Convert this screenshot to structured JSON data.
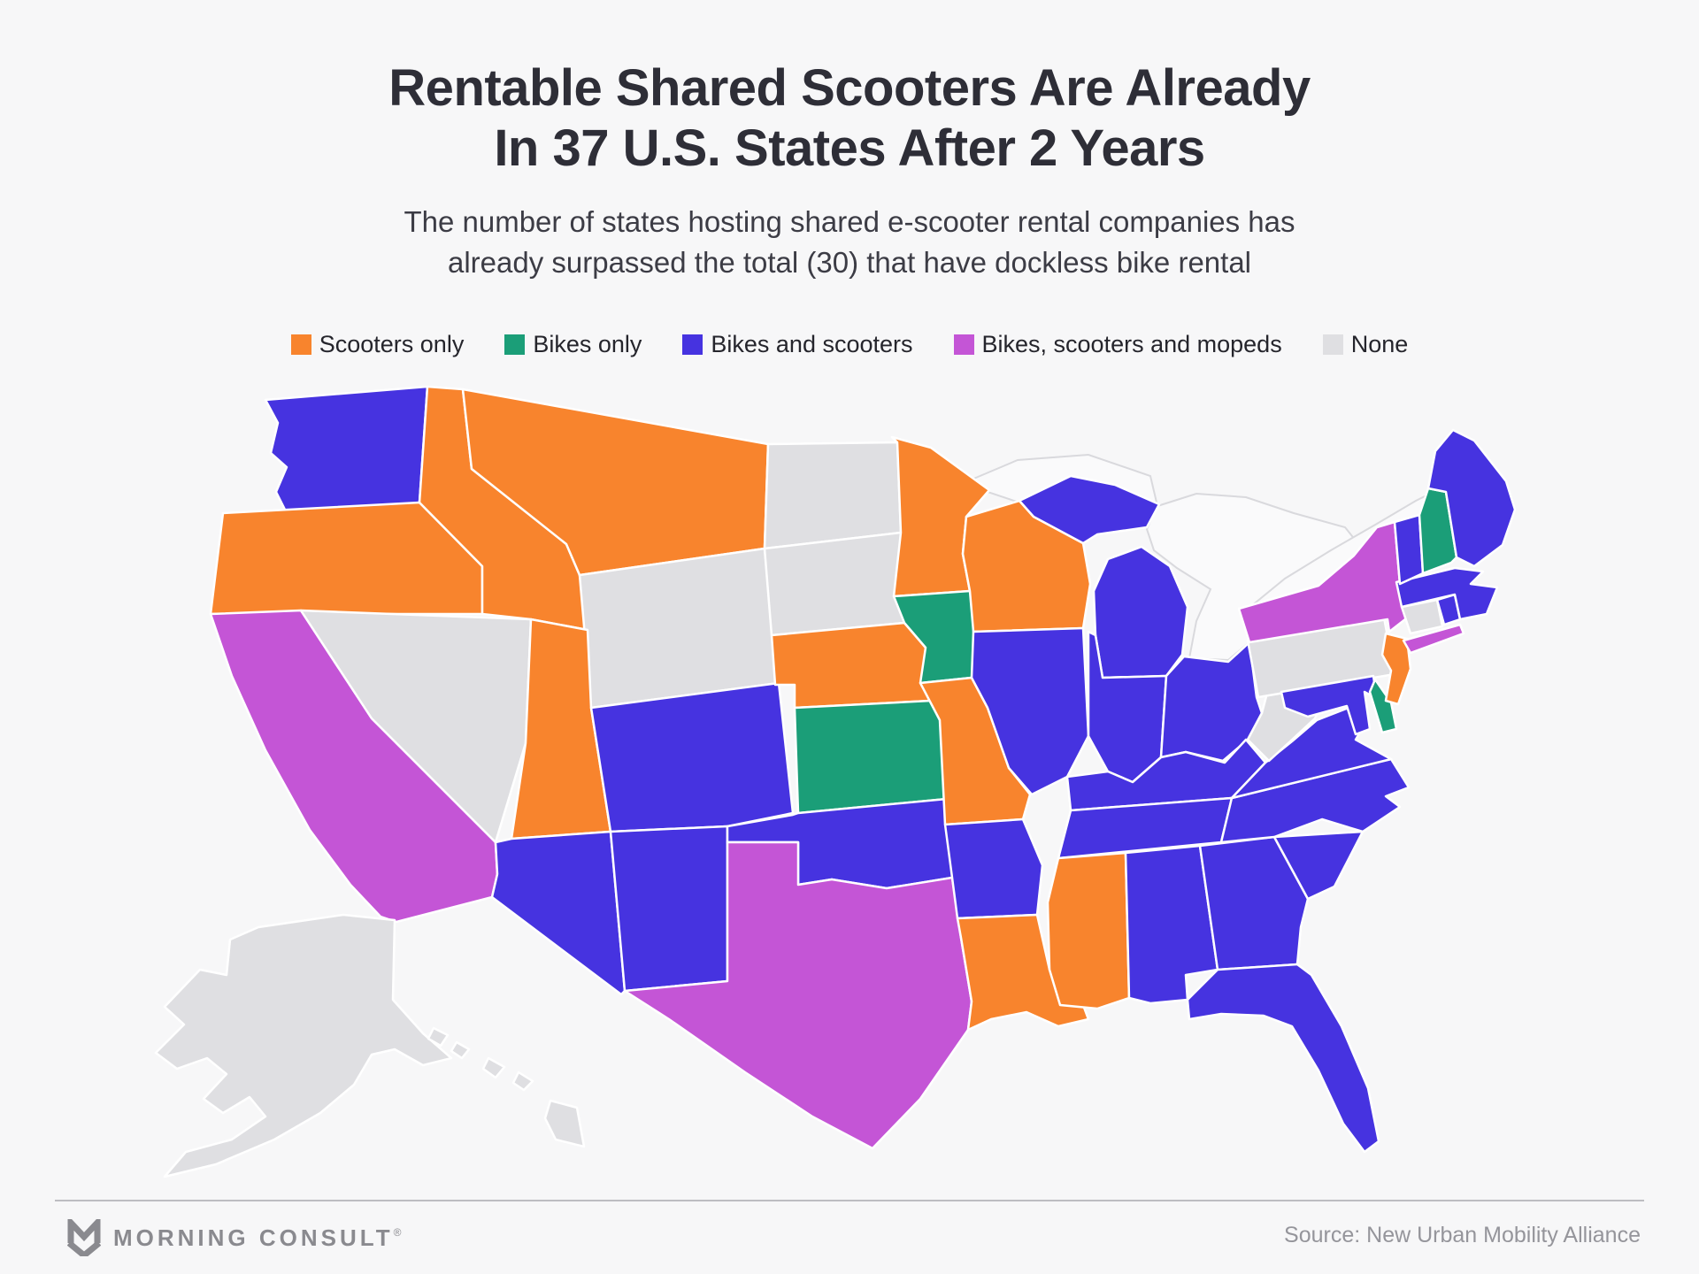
{
  "title": {
    "line1": "Rentable Shared Scooters Are Already",
    "line2": "In 37 U.S. States After 2 Years"
  },
  "subtitle": {
    "line1": "The number of states hosting shared e-scooter rental companies has",
    "line2": "already surpassed the total (30) that have dockless bike rental"
  },
  "legend": [
    {
      "id": "scooters_only",
      "label": "Scooters only"
    },
    {
      "id": "bikes_only",
      "label": "Bikes only"
    },
    {
      "id": "bikes_scooters",
      "label": "Bikes and scooters"
    },
    {
      "id": "bikes_scooters_mopeds",
      "label": "Bikes, scooters and mopeds"
    },
    {
      "id": "none",
      "label": "None"
    }
  ],
  "colors": {
    "scooters_only": "#F8842D",
    "bikes_only": "#1B9E78",
    "bikes_scooters": "#4633E0",
    "bikes_scooters_mopeds": "#C455D6",
    "none": "#DFDFE2",
    "background": "#F7F7F8",
    "state_border": "#FFFFFF"
  },
  "footer": {
    "brand": "MORNING CONSULT",
    "trademark": "®",
    "source": "Source: New Urban Mobility Alliance"
  },
  "chart_data": {
    "type": "choropleth",
    "title": "Rentable Shared Scooters Are Already In 37 U.S. States After 2 Years",
    "subtitle": "The number of states hosting shared e-scooter rental companies has already surpassed the total (30) that have dockless bike rental",
    "source": "Source: New Urban Mobility Alliance",
    "legend_position": "top",
    "category_counts": {
      "scooters_only": 11,
      "bikes_only": 4,
      "bikes_scooters": 23,
      "bikes_scooters_mopeds": 3,
      "none": 9
    },
    "totals": {
      "states_with_scooters": 37,
      "states_with_dockless_bikes": 30
    },
    "states": {
      "WA": {
        "name": "Washington",
        "category": "bikes_scooters"
      },
      "OR": {
        "name": "Oregon",
        "category": "scooters_only"
      },
      "CA": {
        "name": "California",
        "category": "bikes_scooters_mopeds"
      },
      "NV": {
        "name": "Nevada",
        "category": "none"
      },
      "ID": {
        "name": "Idaho",
        "category": "scooters_only"
      },
      "MT": {
        "name": "Montana",
        "category": "scooters_only"
      },
      "WY": {
        "name": "Wyoming",
        "category": "none"
      },
      "UT": {
        "name": "Utah",
        "category": "scooters_only"
      },
      "CO": {
        "name": "Colorado",
        "category": "bikes_scooters"
      },
      "AZ": {
        "name": "Arizona",
        "category": "bikes_scooters"
      },
      "NM": {
        "name": "New Mexico",
        "category": "bikes_scooters"
      },
      "ND": {
        "name": "North Dakota",
        "category": "none"
      },
      "SD": {
        "name": "South Dakota",
        "category": "none"
      },
      "NE": {
        "name": "Nebraska",
        "category": "scooters_only"
      },
      "KS": {
        "name": "Kansas",
        "category": "bikes_only"
      },
      "OK": {
        "name": "Oklahoma",
        "category": "bikes_scooters"
      },
      "TX": {
        "name": "Texas",
        "category": "bikes_scooters_mopeds"
      },
      "MN": {
        "name": "Minnesota",
        "category": "scooters_only"
      },
      "IA": {
        "name": "Iowa",
        "category": "bikes_only"
      },
      "MO": {
        "name": "Missouri",
        "category": "scooters_only"
      },
      "AR": {
        "name": "Arkansas",
        "category": "bikes_scooters"
      },
      "LA": {
        "name": "Louisiana",
        "category": "scooters_only"
      },
      "WI": {
        "name": "Wisconsin",
        "category": "scooters_only"
      },
      "IL": {
        "name": "Illinois",
        "category": "bikes_scooters"
      },
      "MI": {
        "name": "Michigan",
        "category": "bikes_scooters"
      },
      "IN": {
        "name": "Indiana",
        "category": "bikes_scooters"
      },
      "OH": {
        "name": "Ohio",
        "category": "bikes_scooters"
      },
      "KY": {
        "name": "Kentucky",
        "category": "bikes_scooters"
      },
      "TN": {
        "name": "Tennessee",
        "category": "bikes_scooters"
      },
      "MS": {
        "name": "Mississippi",
        "category": "scooters_only"
      },
      "AL": {
        "name": "Alabama",
        "category": "bikes_scooters"
      },
      "GA": {
        "name": "Georgia",
        "category": "bikes_scooters"
      },
      "FL": {
        "name": "Florida",
        "category": "bikes_scooters"
      },
      "SC": {
        "name": "South Carolina",
        "category": "bikes_scooters"
      },
      "NC": {
        "name": "North Carolina",
        "category": "bikes_scooters"
      },
      "VA": {
        "name": "Virginia",
        "category": "bikes_scooters"
      },
      "WV": {
        "name": "West Virginia",
        "category": "none"
      },
      "MD": {
        "name": "Maryland",
        "category": "bikes_scooters"
      },
      "DE": {
        "name": "Delaware",
        "category": "bikes_only"
      },
      "PA": {
        "name": "Pennsylvania",
        "category": "none"
      },
      "NJ": {
        "name": "New Jersey",
        "category": "scooters_only"
      },
      "NY": {
        "name": "New York",
        "category": "bikes_scooters_mopeds"
      },
      "CT": {
        "name": "Connecticut",
        "category": "none"
      },
      "RI": {
        "name": "Rhode Island",
        "category": "bikes_scooters"
      },
      "MA": {
        "name": "Massachusetts",
        "category": "bikes_scooters"
      },
      "VT": {
        "name": "Vermont",
        "category": "bikes_scooters"
      },
      "NH": {
        "name": "New Hampshire",
        "category": "bikes_only"
      },
      "ME": {
        "name": "Maine",
        "category": "bikes_scooters"
      },
      "AK": {
        "name": "Alaska",
        "category": "none"
      },
      "HI": {
        "name": "Hawaii",
        "category": "none"
      }
    }
  }
}
